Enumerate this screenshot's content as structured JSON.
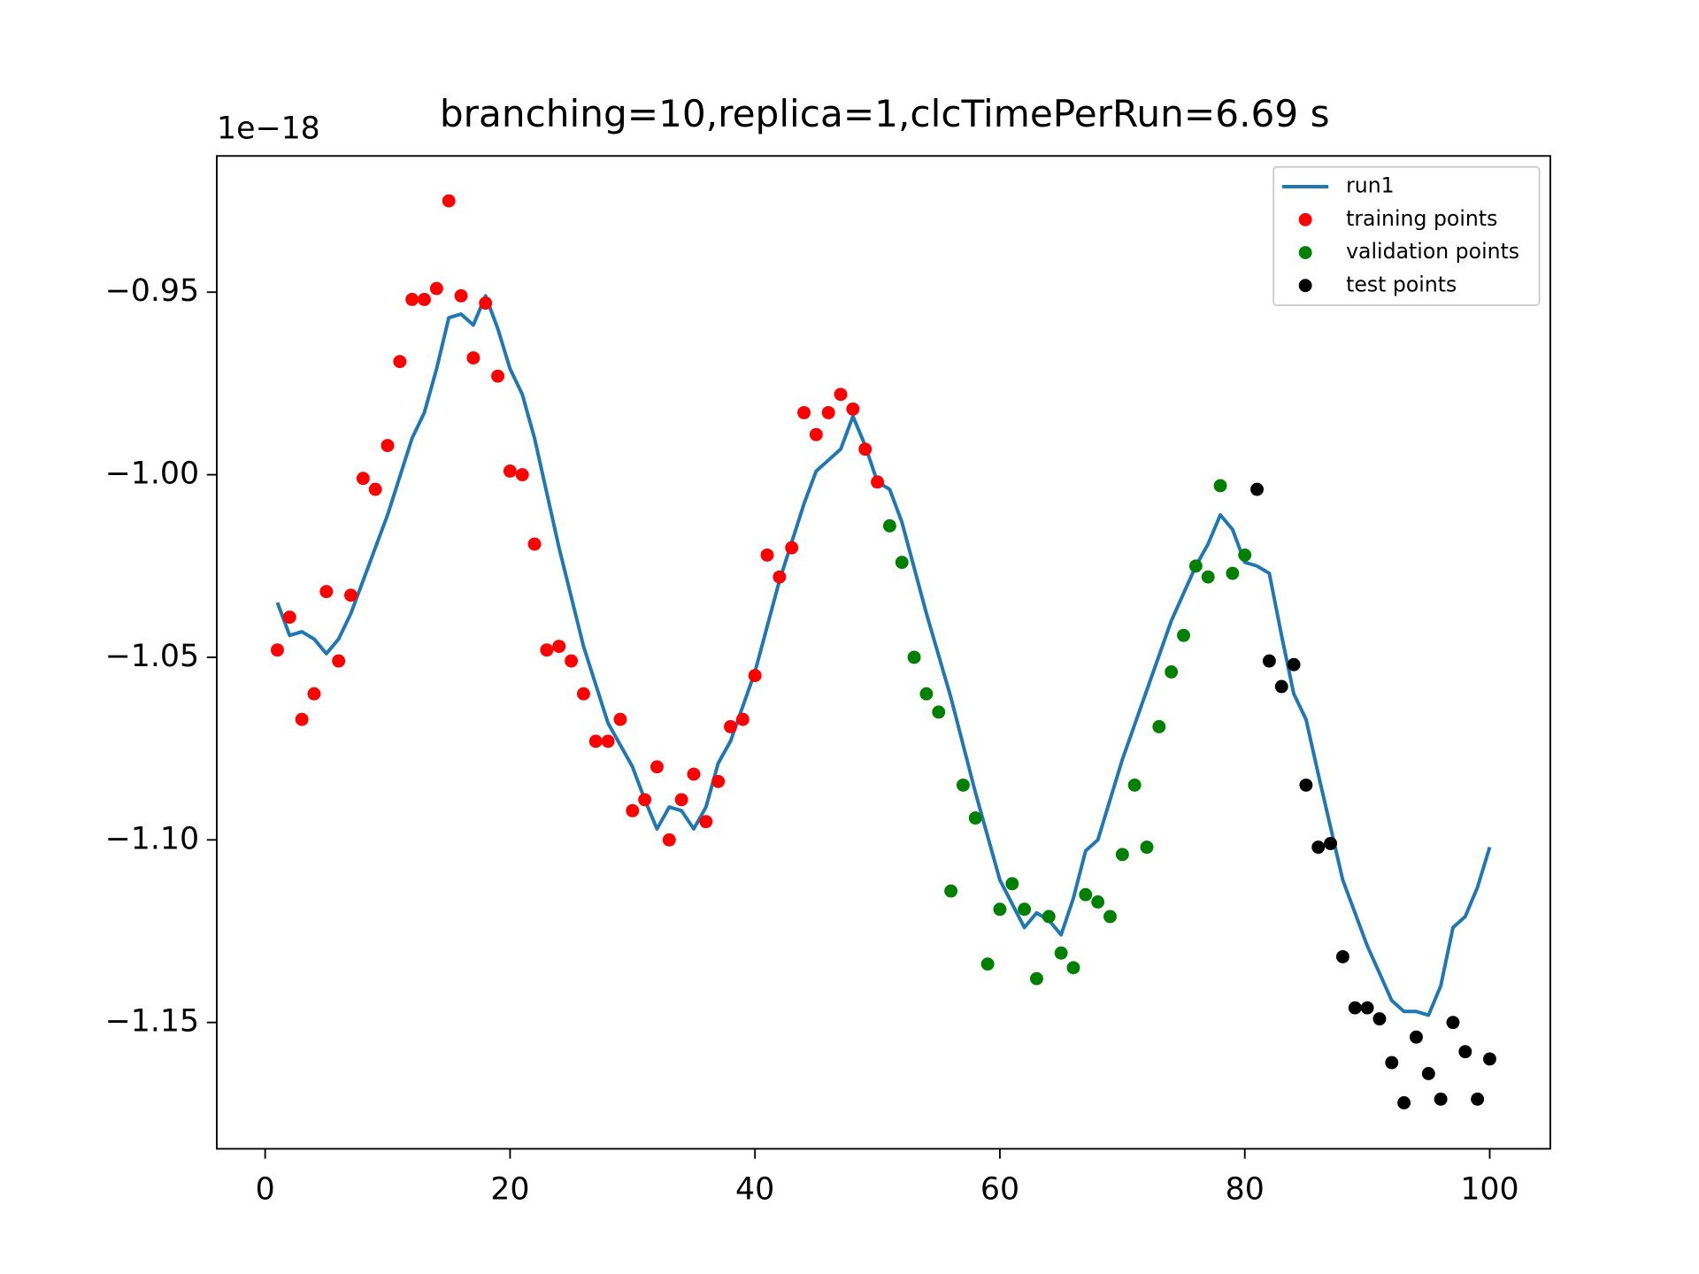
{
  "chart_data": {
    "type": "line_scatter",
    "title": "branching=10,replica=1,clcTimePerRun=6.69 s",
    "offset_label": "1e−18",
    "xlim": [
      -3.95,
      104.95
    ],
    "ylim": [
      -1.1846,
      -0.9127
    ],
    "xticks": [
      0,
      20,
      40,
      60,
      80,
      100
    ],
    "yticks": [
      {
        "value": -0.95,
        "label": "−0.95"
      },
      {
        "value": -1.0,
        "label": "−1.00"
      },
      {
        "value": -1.05,
        "label": "−1.05"
      },
      {
        "value": -1.1,
        "label": "−1.10"
      },
      {
        "value": -1.15,
        "label": "−1.15"
      }
    ],
    "legend": "upper right",
    "series": [
      {
        "name": "run1",
        "kind": "line",
        "color": "#1f77b4",
        "x": [
          1,
          2,
          3,
          4,
          5,
          6,
          7,
          8,
          10,
          12,
          13,
          14,
          15,
          16,
          17,
          18,
          19,
          20,
          21,
          22,
          24,
          26,
          28,
          30,
          31,
          32,
          33,
          34,
          35,
          36,
          37,
          38,
          40,
          42,
          44,
          45,
          46,
          47,
          48,
          49,
          50,
          51,
          52,
          54,
          56,
          58,
          60,
          62,
          63,
          64,
          65,
          66,
          67,
          68,
          70,
          72,
          74,
          76,
          77,
          78,
          79,
          80,
          81,
          82,
          83,
          84,
          85,
          86,
          88,
          90,
          92,
          93,
          94,
          95,
          96,
          97,
          98,
          99,
          100
        ],
        "values": [
          -1.035,
          -1.044,
          -1.043,
          -1.045,
          -1.049,
          -1.045,
          -1.038,
          -1.029,
          -1.011,
          -0.99,
          -0.983,
          -0.971,
          -0.957,
          -0.956,
          -0.959,
          -0.951,
          -0.96,
          -0.971,
          -0.978,
          -0.99,
          -1.02,
          -1.047,
          -1.068,
          -1.08,
          -1.089,
          -1.097,
          -1.091,
          -1.092,
          -1.097,
          -1.091,
          -1.079,
          -1.073,
          -1.054,
          -1.029,
          -1.008,
          -0.999,
          -0.996,
          -0.993,
          -0.984,
          -0.992,
          -1.002,
          -1.004,
          -1.013,
          -1.038,
          -1.061,
          -1.087,
          -1.111,
          -1.124,
          -1.12,
          -1.122,
          -1.126,
          -1.116,
          -1.103,
          -1.1,
          -1.078,
          -1.059,
          -1.04,
          -1.025,
          -1.019,
          -1.011,
          -1.015,
          -1.024,
          -1.025,
          -1.027,
          -1.044,
          -1.06,
          -1.067,
          -1.082,
          -1.111,
          -1.129,
          -1.144,
          -1.147,
          -1.147,
          -1.148,
          -1.14,
          -1.124,
          -1.121,
          -1.113,
          -1.102
        ]
      },
      {
        "name": "training points",
        "kind": "scatter",
        "color": "#ff0000",
        "x": [
          1,
          2,
          3,
          4,
          5,
          6,
          7,
          8,
          9,
          10,
          11,
          12,
          13,
          14,
          15,
          16,
          17,
          18,
          19,
          20,
          21,
          22,
          23,
          24,
          25,
          26,
          27,
          28,
          29,
          30,
          31,
          32,
          33,
          34,
          35,
          36,
          37,
          38,
          39,
          40,
          41,
          42,
          43,
          44,
          45,
          46,
          47,
          48,
          49,
          50
        ],
        "values": [
          -1.048,
          -1.039,
          -1.067,
          -1.06,
          -1.032,
          -1.051,
          -1.033,
          -1.001,
          -1.004,
          -0.992,
          -0.969,
          -0.952,
          -0.952,
          -0.949,
          -0.925,
          -0.951,
          -0.968,
          -0.953,
          -0.973,
          -0.999,
          -1.0,
          -1.019,
          -1.048,
          -1.047,
          -1.051,
          -1.06,
          -1.073,
          -1.073,
          -1.067,
          -1.092,
          -1.089,
          -1.08,
          -1.1,
          -1.089,
          -1.082,
          -1.095,
          -1.084,
          -1.069,
          -1.067,
          -1.055,
          -1.022,
          -1.028,
          -1.02,
          -0.983,
          -0.989,
          -0.983,
          -0.978,
          -0.982,
          -0.993,
          -1.002
        ]
      },
      {
        "name": "validation points",
        "kind": "scatter",
        "color": "#008000",
        "x": [
          51,
          52,
          53,
          54,
          55,
          56,
          57,
          58,
          59,
          60,
          61,
          62,
          63,
          64,
          65,
          66,
          67,
          68,
          69,
          70,
          71,
          72,
          73,
          74,
          75,
          76,
          77,
          78,
          79,
          80
        ],
        "values": [
          -1.014,
          -1.024,
          -1.05,
          -1.06,
          -1.065,
          -1.114,
          -1.085,
          -1.094,
          -1.134,
          -1.119,
          -1.112,
          -1.119,
          -1.138,
          -1.121,
          -1.131,
          -1.135,
          -1.115,
          -1.117,
          -1.121,
          -1.104,
          -1.085,
          -1.102,
          -1.069,
          -1.054,
          -1.044,
          -1.025,
          -1.028,
          -1.003,
          -1.027,
          -1.022
        ]
      },
      {
        "name": "test points",
        "kind": "scatter",
        "color": "#000000",
        "x": [
          81,
          82,
          83,
          84,
          85,
          86,
          87,
          88,
          89,
          90,
          91,
          92,
          93,
          94,
          95,
          96,
          97,
          98,
          99,
          100
        ],
        "values": [
          -1.004,
          -1.051,
          -1.058,
          -1.052,
          -1.085,
          -1.102,
          -1.101,
          -1.132,
          -1.146,
          -1.146,
          -1.149,
          -1.161,
          -1.172,
          -1.154,
          -1.164,
          -1.171,
          -1.15,
          -1.158,
          -1.171,
          -1.16
        ]
      }
    ]
  }
}
